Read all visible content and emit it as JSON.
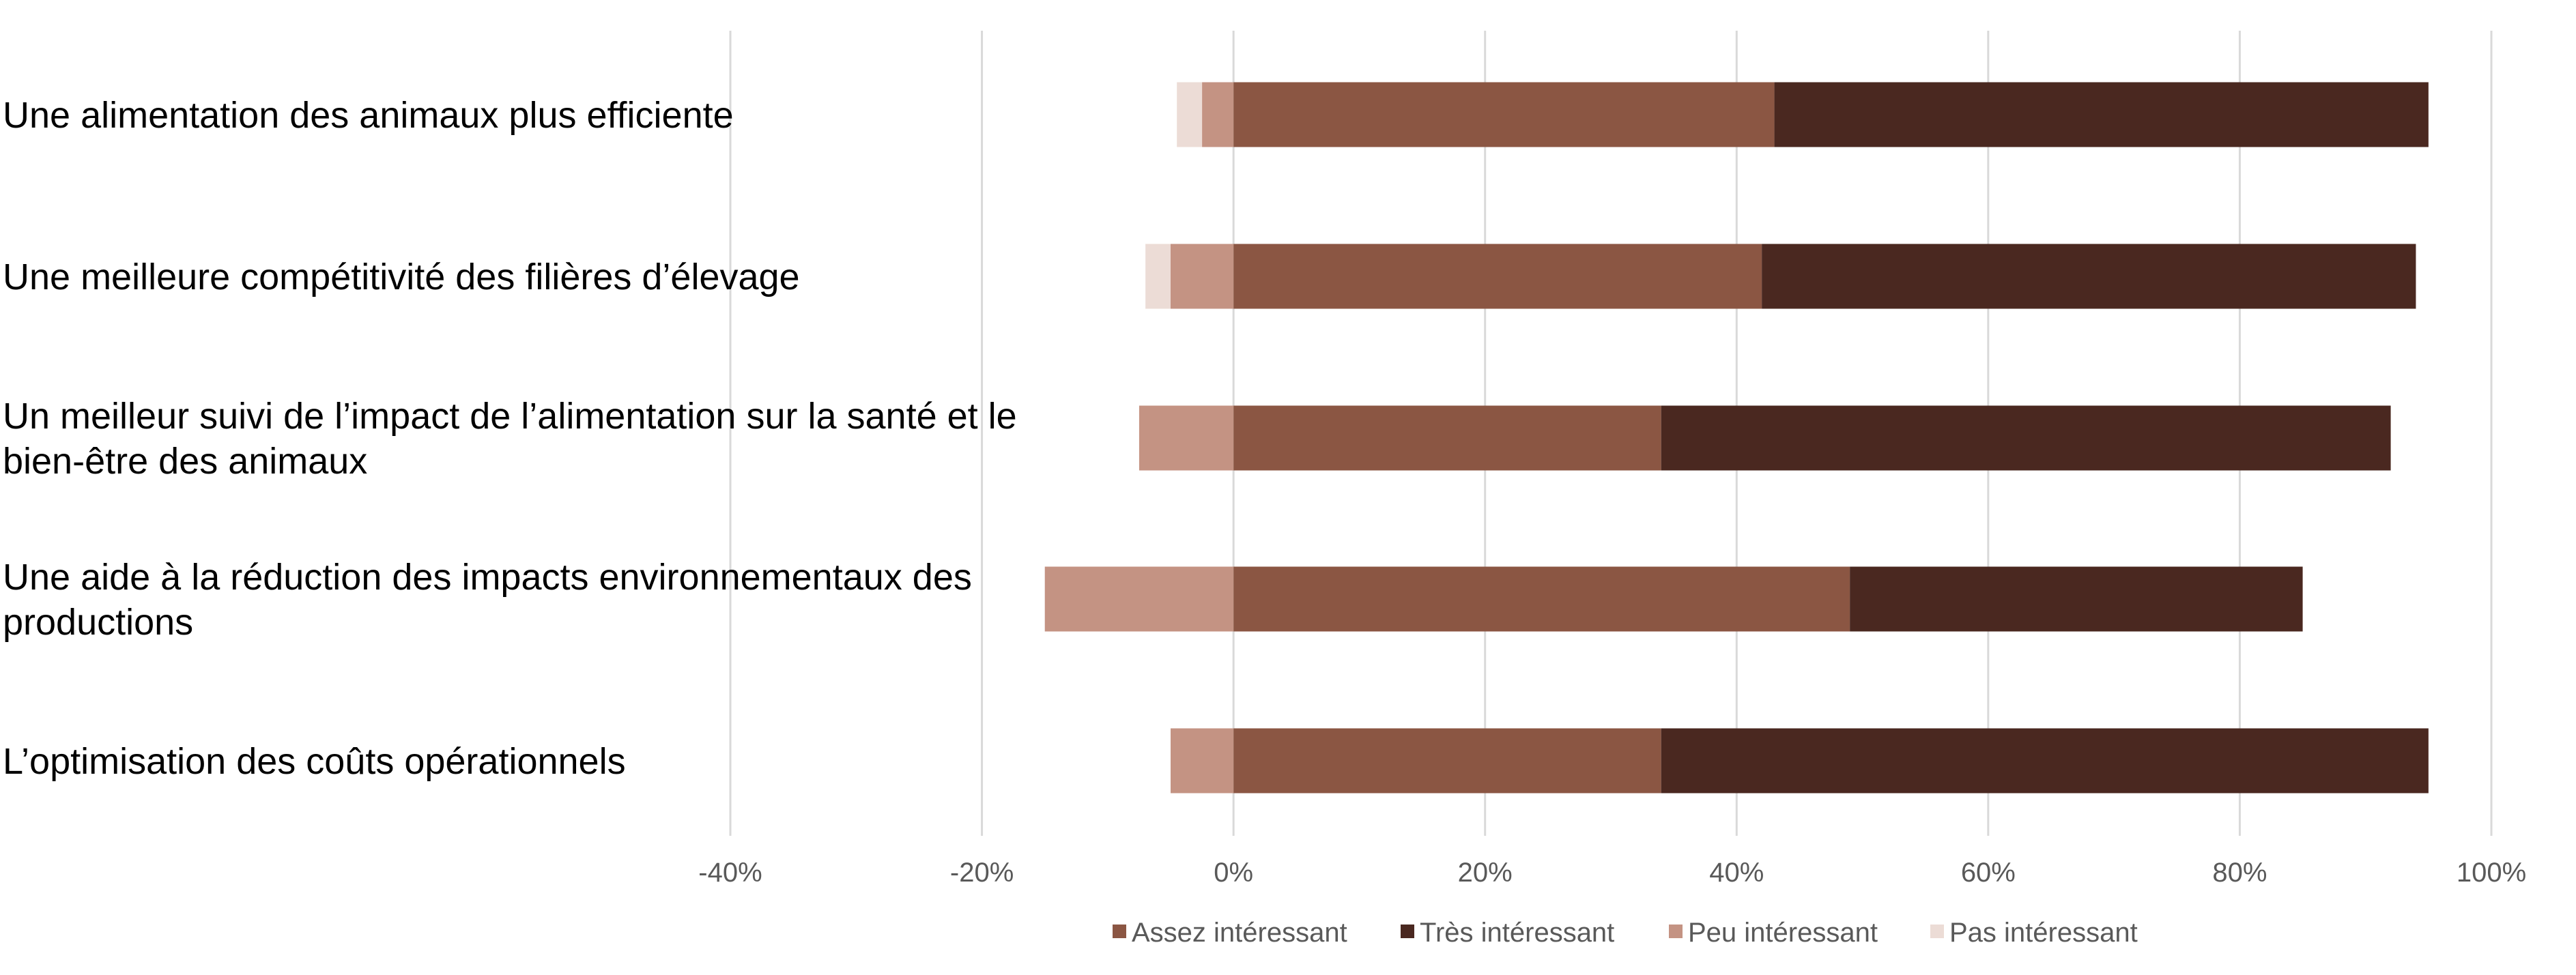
{
  "chart_data": {
    "type": "bar",
    "orientation": "horizontal",
    "stacked": true,
    "diverging": true,
    "categories": [
      "Une alimentation des animaux plus efficiente",
      "Une meilleure compétitivité des filières d’élevage",
      "Un meilleur suivi de l’impact de l’alimentation sur la santé  et le bien-être des animaux",
      "Une aide à la réduction des impacts environnementaux des productions",
      "L’optimisation des coûts opérationnels"
    ],
    "category_lines": [
      [
        "Une alimentation des animaux plus efficiente"
      ],
      [
        "Une meilleure compétitivité des filières d’élevage"
      ],
      [
        "Un meilleur suivi de l’impact de l’alimentation sur la santé  et le",
        "bien-être des animaux"
      ],
      [
        "Une aide à la réduction des impacts environnementaux des",
        "productions"
      ],
      [
        "L’optimisation des coûts opérationnels"
      ]
    ],
    "series": [
      {
        "name": "Assez intéressant",
        "color": "#8b5643",
        "values": [
          43,
          42,
          34,
          49,
          34
        ]
      },
      {
        "name": "Très intéressant",
        "color": "#4a2820",
        "values": [
          52,
          52,
          58,
          36,
          61
        ]
      },
      {
        "name": "Peu intéressant",
        "color": "#c49383",
        "values": [
          -2.5,
          -5,
          -7.5,
          -15,
          -5
        ]
      },
      {
        "name": "Pas intéressant",
        "color": "#ecdcd6",
        "values": [
          -2,
          -2,
          0,
          0,
          0
        ]
      }
    ],
    "x_ticks": [
      "-40%",
      "-20%",
      "0%",
      "20%",
      "40%",
      "60%",
      "80%",
      "100%"
    ],
    "x_tick_values": [
      -40,
      -20,
      0,
      20,
      40,
      60,
      80,
      100
    ],
    "xlim": [
      -40,
      100
    ],
    "grid": true,
    "legend_position": "bottom"
  }
}
